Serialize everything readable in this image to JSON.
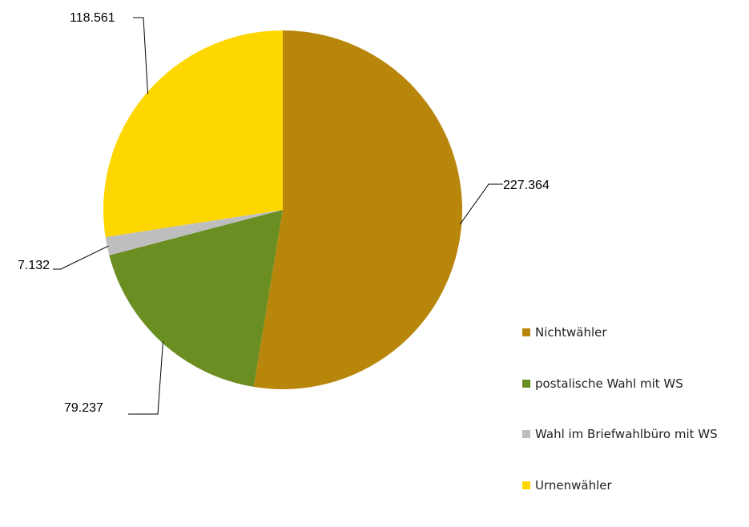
{
  "chart_data": {
    "type": "pie",
    "title": "",
    "slices": [
      {
        "label": "Nichtwähler",
        "value": 227364,
        "display": "227.364",
        "color": "#B8860B"
      },
      {
        "label": "postalische Wahl mit WS",
        "value": 79237,
        "display": "79.237",
        "color": "#6B8E23"
      },
      {
        "label": "Wahl im Briefwahlbüro mit WS",
        "value": 7132,
        "display": "7.132",
        "color": "#BEBEBE"
      },
      {
        "label": "Urnenwähler",
        "value": 118561,
        "display": "118.561",
        "color": "#FFD700"
      }
    ],
    "start_angle_deg": 0,
    "direction": "clockwise",
    "legend_position": "right-bottom"
  }
}
